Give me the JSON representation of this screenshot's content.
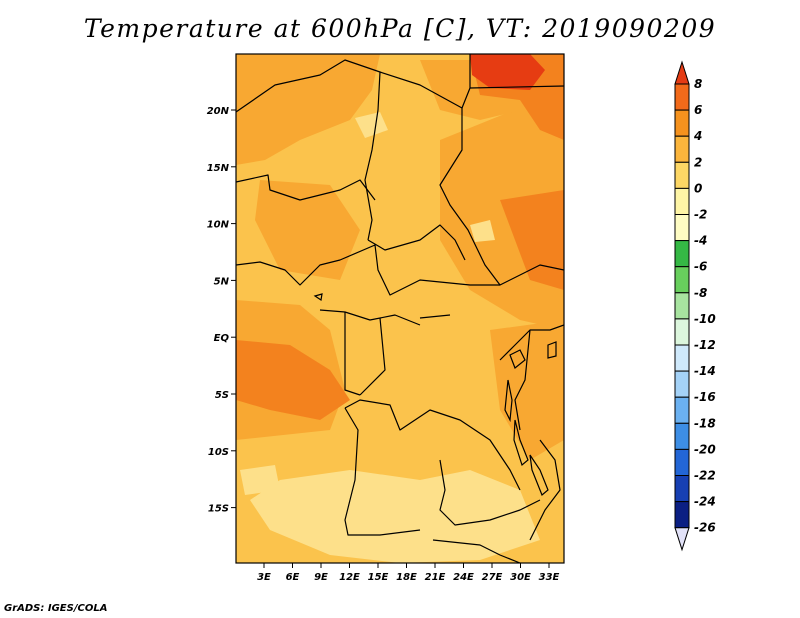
{
  "title": "Temperature at 600hPa [C], VT: 2019090209",
  "credit": "GrADS: IGES/COLA",
  "map": {
    "y_ticks": [
      "20N",
      "15N",
      "10N",
      "5N",
      "EQ",
      "5S",
      "10S",
      "15S"
    ],
    "x_ticks": [
      "3E",
      "6E",
      "9E",
      "12E",
      "15E",
      "18E",
      "21E",
      "24E",
      "27E",
      "30E",
      "33E"
    ]
  },
  "colorbar": {
    "labels": [
      "8",
      "6",
      "4",
      "2",
      "0",
      "-2",
      "-4",
      "-6",
      "-8",
      "-10",
      "-12",
      "-14",
      "-16",
      "-18",
      "-20",
      "-22",
      "-24",
      "-26"
    ],
    "colors": [
      "#e43b14",
      "#f26a1a",
      "#f5921e",
      "#fbb53c",
      "#fdd765",
      "#fef5a6",
      "#fefcc3",
      "#35b845",
      "#68cf5d",
      "#a8e4a0",
      "#dcf6dd",
      "#cfe9fb",
      "#a4d2f7",
      "#6bb1f1",
      "#3d8ee5",
      "#2366d6",
      "#1740b3",
      "#0b1f83",
      "#e2e2f8"
    ]
  },
  "field_colors": {
    "orange_2_4": "#f8a832",
    "yellow_0_2": "#fbc34c",
    "light_m2_0": "#fde08a",
    "dark_4_6": "#f3821e",
    "red_6_8": "#e63c12"
  }
}
